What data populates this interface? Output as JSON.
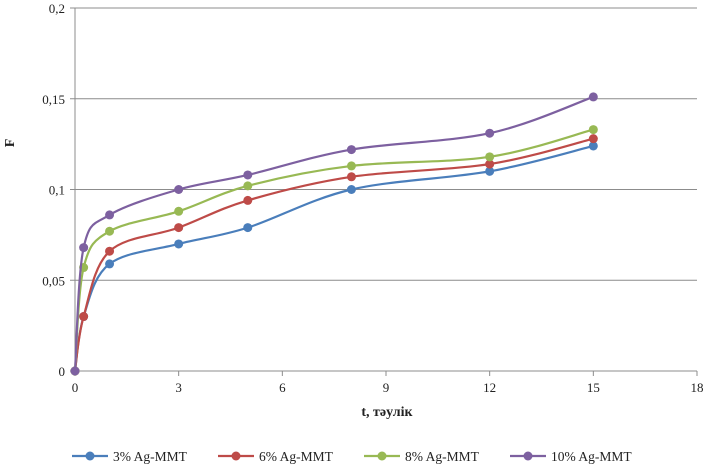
{
  "chart_data": {
    "type": "line",
    "xlabel": "t, тәулік",
    "ylabel": "F",
    "xlim": [
      0,
      18
    ],
    "ylim": [
      0,
      0.2
    ],
    "x_ticks": [
      0,
      3,
      6,
      9,
      12,
      15,
      18
    ],
    "x_tick_labels": [
      "0",
      "3",
      "6",
      "9",
      "12",
      "15",
      "18"
    ],
    "y_ticks": [
      0,
      0.05,
      0.1,
      0.15,
      0.2
    ],
    "y_tick_labels": [
      "0",
      "0,05",
      "0,1",
      "0,15",
      "0,2"
    ],
    "grid": "horizontal",
    "legend_position": "bottom",
    "series": [
      {
        "name": "3% Ag-MMT",
        "color": "#4a7ebb",
        "x": [
          0,
          0.25,
          1,
          3,
          5,
          8,
          12,
          15
        ],
        "y": [
          0,
          0.03,
          0.059,
          0.07,
          0.079,
          0.1,
          0.11,
          0.124
        ]
      },
      {
        "name": "6% Ag-MMT",
        "color": "#be4b48",
        "x": [
          0,
          0.25,
          1,
          3,
          5,
          8,
          12,
          15
        ],
        "y": [
          0,
          0.03,
          0.066,
          0.079,
          0.094,
          0.107,
          0.114,
          0.128
        ]
      },
      {
        "name": "8% Ag-MMT",
        "color": "#98b954",
        "x": [
          0,
          0.25,
          1,
          3,
          5,
          8,
          12,
          15
        ],
        "y": [
          0,
          0.057,
          0.077,
          0.088,
          0.102,
          0.113,
          0.118,
          0.133
        ]
      },
      {
        "name": "10% Ag-MMT",
        "color": "#7d60a0",
        "x": [
          0,
          0.25,
          1,
          3,
          5,
          8,
          12,
          15
        ],
        "y": [
          0,
          0.068,
          0.086,
          0.1,
          0.108,
          0.122,
          0.131,
          0.151
        ]
      }
    ]
  }
}
